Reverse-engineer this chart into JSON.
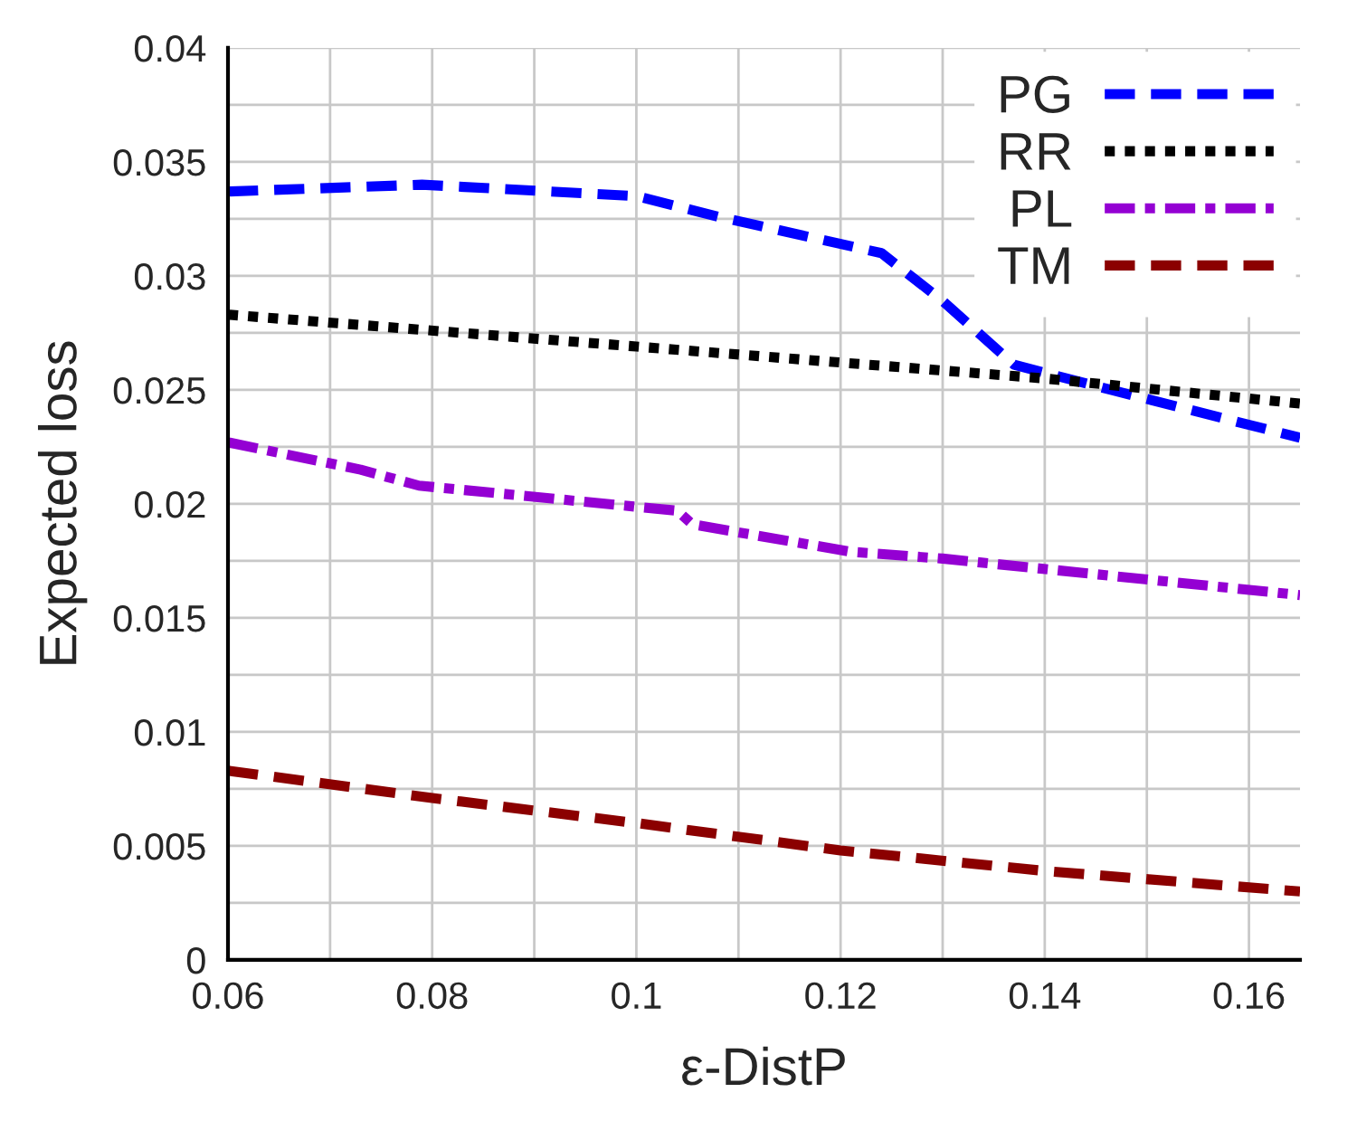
{
  "chart_data": {
    "type": "line",
    "xlabel": "ε-DistP",
    "ylabel": "Expected loss",
    "xlim": [
      0.06,
      0.165
    ],
    "ylim": [
      0,
      0.04
    ],
    "xticks": [
      0.06,
      {
        "value": 0.07,
        "label": null
      },
      0.08,
      {
        "value": 0.09,
        "label": null
      },
      0.1,
      {
        "value": 0.11,
        "label": null
      },
      0.12,
      {
        "value": 0.13,
        "label": null
      },
      0.14,
      {
        "value": 0.15,
        "label": null
      },
      0.16
    ],
    "yticks": [
      0,
      {
        "value": 0.0025,
        "label": null
      },
      0.005,
      {
        "value": 0.0075,
        "label": null
      },
      0.01,
      {
        "value": 0.0125,
        "label": null
      },
      0.015,
      {
        "value": 0.0175,
        "label": null
      },
      0.02,
      {
        "value": 0.0225,
        "label": null
      },
      0.025,
      {
        "value": 0.0275,
        "label": null
      },
      0.03,
      {
        "value": 0.0325,
        "label": null
      },
      0.035,
      {
        "value": 0.0375,
        "label": null
      },
      0.04
    ],
    "grid": true,
    "legend": "top right",
    "marker": "none",
    "series": [
      {
        "name": "PG",
        "color": "#0000ff",
        "line_style": "dashed",
        "x": [
          0.06,
          0.079,
          0.1,
          0.108,
          0.124,
          0.13,
          0.137,
          0.1465,
          0.165
        ],
        "values": [
          0.0337,
          0.034,
          0.0335,
          0.0326,
          0.031,
          0.0289,
          0.0261,
          0.025,
          0.0229
        ]
      },
      {
        "name": "RR",
        "color": "#000000",
        "line_style": "dotted",
        "x": [
          0.06,
          0.1,
          0.14,
          0.165
        ],
        "values": [
          0.0283,
          0.0269,
          0.0255,
          0.0244
        ]
      },
      {
        "name": "PL",
        "color": "#9400d3",
        "line_style": "dashdot",
        "x": [
          0.06,
          0.073,
          0.0787,
          0.104,
          0.1055,
          0.121,
          0.13,
          0.165
        ],
        "values": [
          0.0227,
          0.0215,
          0.0208,
          0.0197,
          0.0191,
          0.0179,
          0.0176,
          0.016
        ]
      },
      {
        "name": "TM",
        "color": "#8b0000",
        "line_style": "dashed",
        "x": [
          0.06,
          0.08,
          0.1,
          0.12,
          0.14,
          0.165
        ],
        "values": [
          0.0083,
          0.0071,
          0.006,
          0.0048,
          0.0039,
          0.003
        ]
      }
    ]
  }
}
